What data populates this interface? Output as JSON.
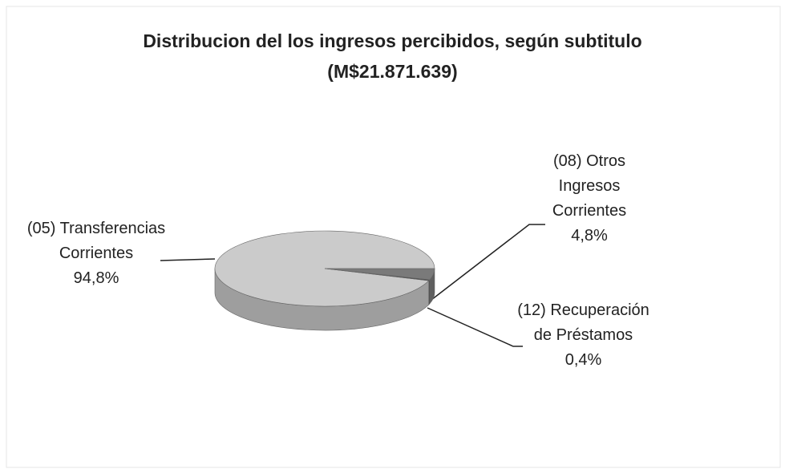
{
  "chart_data": {
    "type": "pie",
    "title": "Distribucion del los ingresos percibidos, según subtitulo",
    "subtitle": "(M$21.871.639)",
    "categories": [
      "(05) Transferencias Corrientes",
      "(08) Otros Ingresos Corrientes",
      "(12) Recuperación de Préstamos"
    ],
    "values": [
      94.8,
      4.8,
      0.4
    ],
    "value_labels": [
      "94,8%",
      "4,8%",
      "0,4%"
    ],
    "colors": [
      "#cbcbcb",
      "#7a7a7a",
      "#4a4a4a"
    ]
  }
}
